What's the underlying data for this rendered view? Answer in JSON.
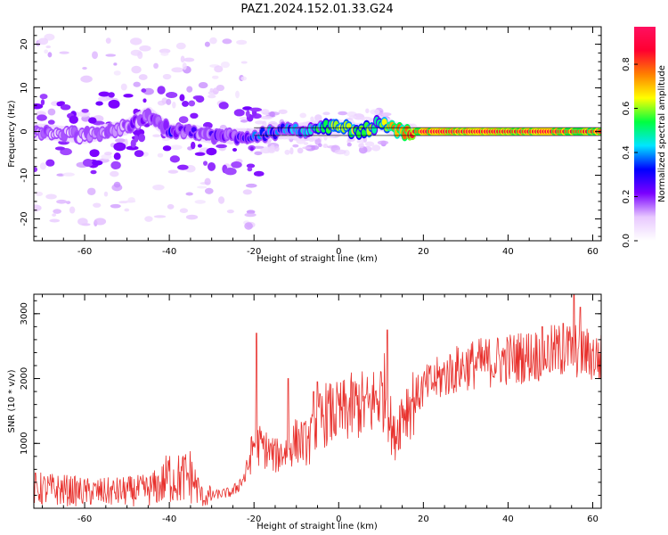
{
  "title": "PAZ1.2024.152.01.33.G24",
  "colors": {
    "line": "#e8302c",
    "cmap": [
      "#ffffff",
      "#e8c8ff",
      "#7a00ff",
      "#0000ff",
      "#00e5ff",
      "#00ff40",
      "#ffff00",
      "#ff8000",
      "#ff0030",
      "#ff1060"
    ]
  },
  "chart_data": [
    {
      "type": "heatmap",
      "title": "PAZ1.2024.152.01.33.G24",
      "xlabel": "Height of straight line (km)",
      "ylabel": "Frequency (Hz)",
      "xlim": [
        -72,
        62
      ],
      "ylim": [
        -25,
        24
      ],
      "xticks": [
        -60,
        -40,
        -20,
        0,
        20,
        40,
        60
      ],
      "yticks": [
        -20,
        -10,
        0,
        10,
        20
      ],
      "colorbar": {
        "label": "Normalized spectral amplitude",
        "range": [
          0.0,
          0.97
        ],
        "ticks": [
          "0.0",
          "0.2",
          "0.4",
          "0.6",
          "0.8"
        ]
      },
      "ridge": {
        "x": [
          -70,
          -60,
          -50,
          -45,
          -40,
          -35,
          -30,
          -25,
          -20,
          -15,
          -10,
          -5,
          0,
          5,
          10,
          12,
          15,
          20,
          30,
          40,
          50,
          60
        ],
        "freq": [
          0,
          -1,
          1,
          4,
          0,
          0,
          -1,
          -1,
          -1,
          0,
          0,
          1,
          1,
          0,
          2,
          1,
          0,
          0,
          0,
          0,
          0,
          0
        ],
        "amplitude": [
          0.15,
          0.12,
          0.15,
          0.2,
          0.25,
          0.2,
          0.2,
          0.2,
          0.35,
          0.35,
          0.4,
          0.5,
          0.6,
          0.6,
          0.55,
          0.7,
          0.75,
          0.9,
          0.9,
          0.9,
          0.9,
          0.85
        ]
      }
    },
    {
      "type": "line",
      "xlabel": "Height of straight line (km)",
      "ylabel": "SNR (10 * v/v)",
      "xlim": [
        -72,
        62
      ],
      "ylim": [
        0,
        3300
      ],
      "xticks": [
        -60,
        -40,
        -20,
        0,
        20,
        40,
        60
      ],
      "yticks": [
        1000,
        2000,
        3000
      ],
      "x": [
        -72,
        -65,
        -60,
        -55,
        -50,
        -45,
        -42,
        -40,
        -38,
        -35,
        -32,
        -30,
        -25,
        -22,
        -20,
        -18,
        -15,
        -12,
        -10,
        -7,
        -5,
        -3,
        0,
        3,
        5,
        7,
        9,
        11,
        13,
        15,
        18,
        20,
        25,
        30,
        35,
        40,
        45,
        50,
        55,
        60,
        62
      ],
      "values": [
        300,
        280,
        250,
        250,
        260,
        280,
        350,
        500,
        450,
        500,
        150,
        200,
        250,
        500,
        1000,
        950,
        800,
        900,
        1050,
        1000,
        1300,
        1450,
        1450,
        1550,
        1600,
        1550,
        1700,
        1800,
        1050,
        1500,
        1700,
        1850,
        2050,
        2200,
        2250,
        2300,
        2350,
        2400,
        2450,
        2350,
        2300
      ]
    }
  ]
}
